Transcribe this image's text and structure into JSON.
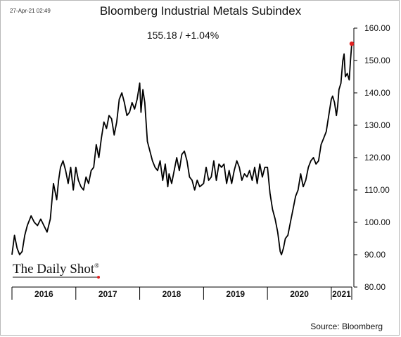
{
  "header": {
    "timestamp": "27-Apr-21 02:49",
    "title": "Bloomberg Industrial Metals Subindex",
    "subtitle": "155.18  /  +1.04%"
  },
  "footer": {
    "brand": "The Daily Shot",
    "brand_mark": "®",
    "source": "Source: Bloomberg"
  },
  "colors": {
    "line": "#000000",
    "last_point": "#e02020",
    "axis": "#000000"
  },
  "chart_data": {
    "type": "line",
    "title": "Bloomberg Industrial Metals Subindex",
    "ylabel": "",
    "ylim": [
      80,
      160
    ],
    "y_ticks": [
      80,
      90,
      100,
      110,
      120,
      130,
      140,
      150,
      160
    ],
    "y_tick_labels": [
      "80.00",
      "90.00",
      "100.00",
      "110.00",
      "120.00",
      "130.00",
      "140.00",
      "150.00",
      "160.00"
    ],
    "y_axis_position": "right",
    "grid": false,
    "x_years": [
      "2016",
      "2017",
      "2018",
      "2019",
      "2020",
      "2021"
    ],
    "x_range": [
      2016.0,
      2021.32
    ],
    "series": [
      {
        "x": [
          2016.0,
          2016.04,
          2016.08,
          2016.12,
          2016.16,
          2016.2,
          2016.24,
          2016.3,
          2016.35,
          2016.4,
          2016.45,
          2016.5,
          2016.55,
          2016.6,
          2016.65,
          2016.7,
          2016.73,
          2016.76,
          2016.8,
          2016.84,
          2016.88,
          2016.92,
          2016.96,
          2017.0,
          2017.04,
          2017.08,
          2017.12,
          2017.16,
          2017.2,
          2017.24,
          2017.28,
          2017.32,
          2017.36,
          2017.4,
          2017.44,
          2017.48,
          2017.52,
          2017.56,
          2017.6,
          2017.64,
          2017.68,
          2017.72,
          2017.76,
          2017.8,
          2017.84,
          2017.88,
          2017.92,
          2017.96,
          2018.0,
          2018.02,
          2018.05,
          2018.08,
          2018.12,
          2018.16,
          2018.2,
          2018.24,
          2018.28,
          2018.32,
          2018.36,
          2018.4,
          2018.44,
          2018.46,
          2018.5,
          2018.54,
          2018.58,
          2018.62,
          2018.66,
          2018.7,
          2018.74,
          2018.78,
          2018.82,
          2018.86,
          2018.9,
          2018.94,
          2019.0,
          2019.04,
          2019.08,
          2019.12,
          2019.16,
          2019.2,
          2019.24,
          2019.28,
          2019.32,
          2019.36,
          2019.4,
          2019.44,
          2019.48,
          2019.52,
          2019.56,
          2019.6,
          2019.64,
          2019.68,
          2019.72,
          2019.76,
          2019.8,
          2019.84,
          2019.88,
          2019.92,
          2019.96,
          2020.0,
          2020.04,
          2020.08,
          2020.12,
          2020.16,
          2020.2,
          2020.22,
          2020.25,
          2020.28,
          2020.32,
          2020.36,
          2020.4,
          2020.44,
          2020.48,
          2020.52,
          2020.56,
          2020.6,
          2020.64,
          2020.68,
          2020.72,
          2020.76,
          2020.8,
          2020.84,
          2020.88,
          2020.92,
          2020.96,
          2021.0,
          2021.02,
          2021.05,
          2021.08,
          2021.1,
          2021.12,
          2021.15,
          2021.18,
          2021.2,
          2021.22,
          2021.25,
          2021.28,
          2021.3,
          2021.32
        ],
        "y": [
          90,
          96,
          92,
          90,
          91,
          96,
          99,
          102,
          100,
          99,
          101,
          99,
          97,
          101,
          112,
          107,
          113,
          117,
          119,
          116,
          112,
          117,
          110,
          117,
          113,
          111,
          110,
          114,
          112,
          116,
          117,
          124,
          120,
          126,
          131,
          129,
          133,
          132,
          127,
          131,
          138,
          140,
          137,
          133,
          134,
          137,
          135,
          138,
          143,
          134,
          141,
          137,
          125,
          122,
          119,
          117,
          116,
          119,
          113,
          118,
          111,
          115,
          112,
          116,
          120,
          116,
          121,
          122,
          119,
          114,
          113,
          110,
          113,
          111,
          112,
          117,
          113,
          114,
          119,
          113,
          118,
          117,
          118,
          112,
          116,
          112,
          116,
          119,
          117,
          113,
          115,
          114,
          116,
          113,
          117,
          112,
          118,
          114,
          117,
          117,
          109,
          104,
          101,
          97,
          91,
          90,
          92,
          95,
          96,
          100,
          104,
          108,
          110,
          115,
          111,
          113,
          117,
          119,
          120,
          118,
          119,
          124,
          126,
          128,
          133,
          138,
          139,
          137,
          133,
          136,
          141,
          143,
          150,
          152,
          145,
          146,
          144,
          150,
          155.18
        ]
      }
    ],
    "last_value": 155.18,
    "change_label": "+1.04%"
  }
}
